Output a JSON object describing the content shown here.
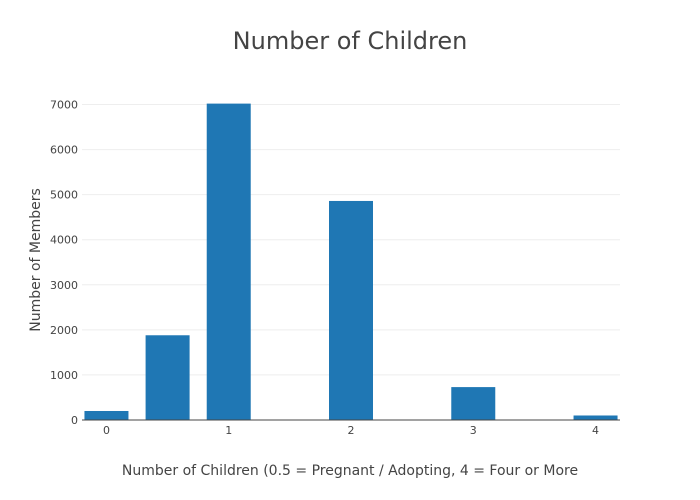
{
  "chart_data": {
    "type": "bar",
    "title": "Number of Children",
    "xlabel": "Number of Children (0.5 = Pregnant / Adopting, 4 = Four or More",
    "ylabel": "Number of Members",
    "x": [
      0,
      0.5,
      1,
      2,
      3,
      4
    ],
    "values": [
      200,
      1880,
      7020,
      4860,
      730,
      100
    ],
    "xlim": [
      -0.2,
      4.2
    ],
    "ylim": [
      0,
      7100
    ],
    "x_ticks": [
      0,
      1,
      2,
      3,
      4
    ],
    "y_ticks": [
      0,
      1000,
      2000,
      3000,
      4000,
      5000,
      6000,
      7000
    ],
    "grid": true,
    "bar_color": "#1f77b4"
  }
}
